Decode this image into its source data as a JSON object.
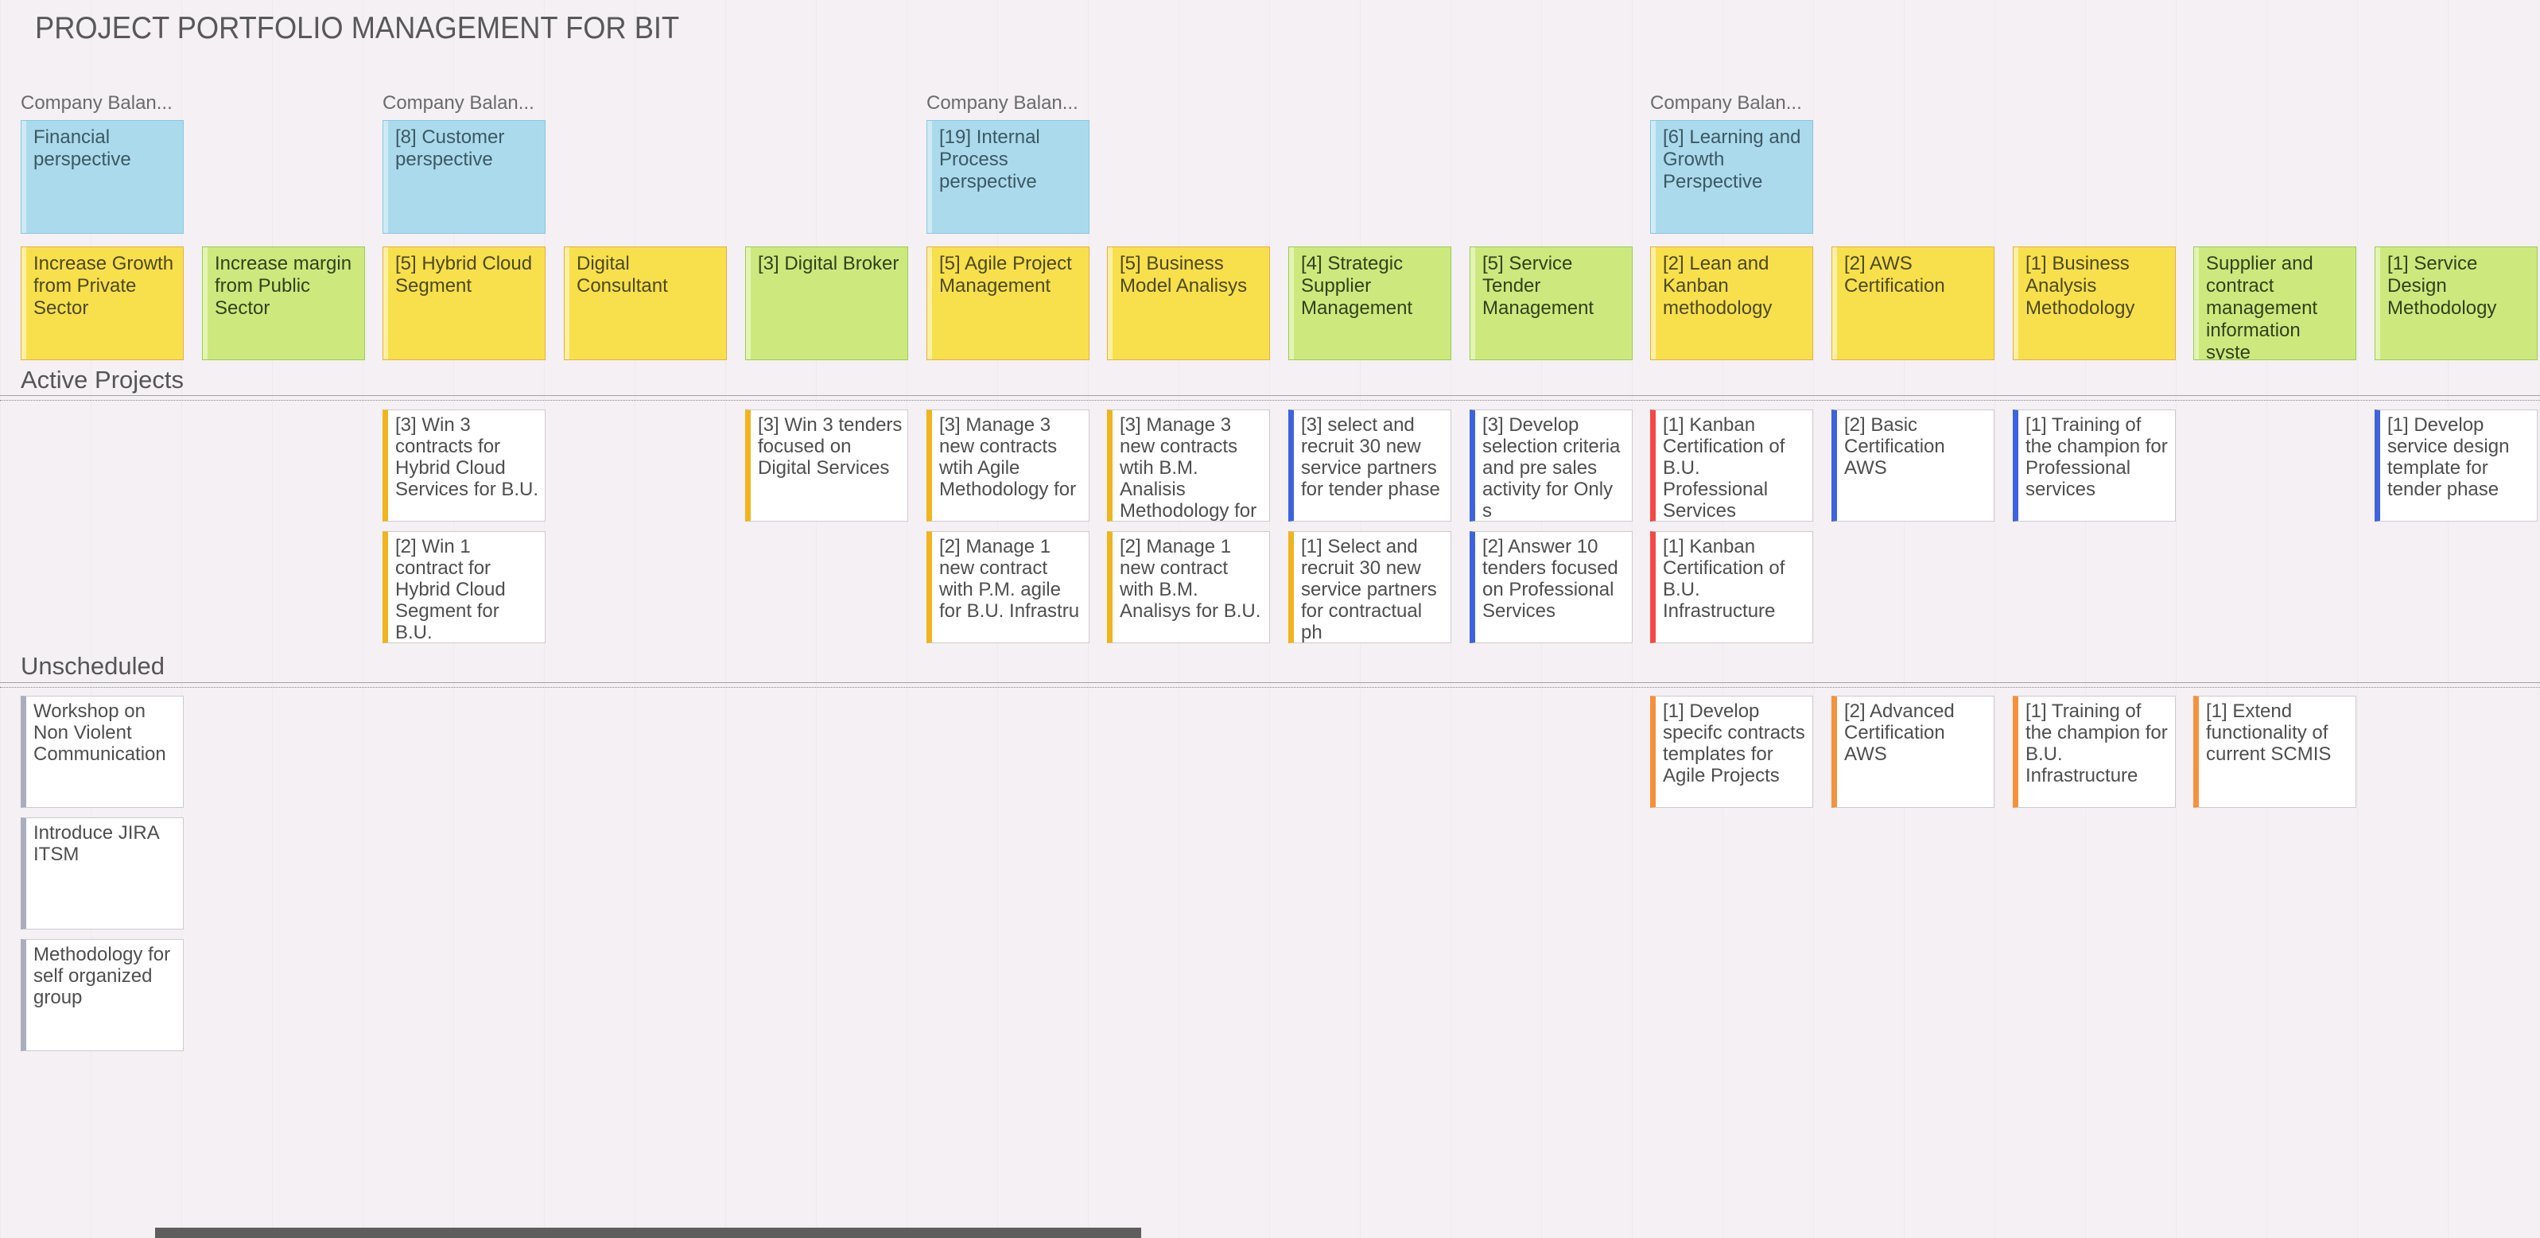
{
  "title": "PROJECT PORTFOLIO MANAGEMENT FOR BIT",
  "colors": {
    "background": "#f4f0f3",
    "title_text": "#58585a",
    "heading_text": "#555555",
    "group_header_text": "#6b6b6b",
    "project_card_text": "#4e4e4e",
    "cards": {
      "blue": {
        "bg": "#abdaec",
        "border": "#86c8e0",
        "stripe": "#cfeaf5",
        "text": "#3c5862"
      },
      "yellow": {
        "bg": "#f8e04c",
        "border": "#e6ae45",
        "stripe": "#fcf0a3",
        "text": "#4c4a1e"
      },
      "green": {
        "bg": "#cde97e",
        "border": "#9acb54",
        "stripe": "#e4f4b3",
        "text": "#31411b"
      }
    },
    "bars": {
      "yellow": "#f0b41e",
      "blue": "#3e63dd",
      "red": "#f24a46",
      "orange": "#f5913d",
      "gray": "#a9aebf"
    }
  },
  "group_headers": [
    {
      "label": "Company Balan...",
      "col": 1
    },
    {
      "label": "Company Balan...",
      "col": 3
    },
    {
      "label": "Company Balan...",
      "col": 6
    },
    {
      "label": "Company Balan...",
      "col": 10
    }
  ],
  "perspective_cards": [
    {
      "text": "Financial perspective",
      "col": 1
    },
    {
      "text": "[8] Customer perspective",
      "col": 3
    },
    {
      "text": "[19] Internal Process perspective",
      "col": 6
    },
    {
      "text": "[6] Learning and Growth Perspective",
      "col": 10
    }
  ],
  "goal_cards": [
    {
      "text": "Increase Growth from Private Sector",
      "col": 1,
      "color": "yellow"
    },
    {
      "text": "Increase margin from Public Sector",
      "col": 2,
      "color": "green"
    },
    {
      "text": "[5] Hybrid Cloud Segment",
      "col": 3,
      "color": "yellow"
    },
    {
      "text": "Digital Consultant",
      "col": 4,
      "color": "yellow"
    },
    {
      "text": "[3] Digital Broker",
      "col": 5,
      "color": "green"
    },
    {
      "text": "[5] Agile Project Management",
      "col": 6,
      "color": "yellow"
    },
    {
      "text": "[5] Business Model Analisys",
      "col": 7,
      "color": "yellow"
    },
    {
      "text": "[4] Strategic Supplier Management",
      "col": 8,
      "color": "green"
    },
    {
      "text": "[5] Service Tender Management",
      "col": 9,
      "color": "green"
    },
    {
      "text": "[2] Lean and Kanban methodology",
      "col": 10,
      "color": "yellow"
    },
    {
      "text": "[2] AWS Certification",
      "col": 11,
      "color": "yellow"
    },
    {
      "text": "[1] Business Analysis Methodology",
      "col": 12,
      "color": "yellow"
    },
    {
      "text": "Supplier and contract management information syste",
      "col": 13,
      "color": "green"
    },
    {
      "text": "[1] Service Design Methodology",
      "col": 14,
      "color": "green"
    }
  ],
  "sections": {
    "active": {
      "heading": "Active Projects",
      "cards": [
        {
          "text": "[3] Win 3 contracts for Hybrid Cloud Services for B.U.",
          "col": 3,
          "row": 0,
          "bar": "yellow"
        },
        {
          "text": "[3] Win 3 tenders focused on Digital Services",
          "col": 5,
          "row": 0,
          "bar": "yellow"
        },
        {
          "text": "[3] Manage 3 new contracts wtih  Agile Methodology for",
          "col": 6,
          "row": 0,
          "bar": "yellow"
        },
        {
          "text": "[3] Manage 3 new contracts wtih B.M. Analisis Methodology for",
          "col": 7,
          "row": 0,
          "bar": "yellow"
        },
        {
          "text": "[3] select and recruit 30 new service partners for tender phase",
          "col": 8,
          "row": 0,
          "bar": "blue"
        },
        {
          "text": "[3] Develop selection criteria and pre sales activity for Only s",
          "col": 9,
          "row": 0,
          "bar": "blue"
        },
        {
          "text": "[1] Kanban Certification of B.U. Professional Services",
          "col": 10,
          "row": 0,
          "bar": "red"
        },
        {
          "text": "[2] Basic Certification AWS",
          "col": 11,
          "row": 0,
          "bar": "blue"
        },
        {
          "text": "[1] Training of the champion for Professional services",
          "col": 12,
          "row": 0,
          "bar": "blue"
        },
        {
          "text": "[1] Develop service design template for tender phase",
          "col": 14,
          "row": 0,
          "bar": "blue"
        },
        {
          "text": "[2] Win 1 contract for Hybrid Cloud Segment for B.U.",
          "col": 3,
          "row": 1,
          "bar": "yellow"
        },
        {
          "text": "[2] Manage 1 new contract with P.M. agile for B.U. Infrastru",
          "col": 6,
          "row": 1,
          "bar": "yellow"
        },
        {
          "text": "[2] Manage 1 new contract with B.M. Analisys for B.U.",
          "col": 7,
          "row": 1,
          "bar": "yellow"
        },
        {
          "text": "[1] Select and recruit 30 new service partners for contractual ph",
          "col": 8,
          "row": 1,
          "bar": "yellow"
        },
        {
          "text": "[2] Answer 10 tenders focused on Professional Services",
          "col": 9,
          "row": 1,
          "bar": "blue"
        },
        {
          "text": "[1] Kanban Certification of B.U. Infrastructure",
          "col": 10,
          "row": 1,
          "bar": "red"
        }
      ]
    },
    "unscheduled": {
      "heading": "Unscheduled",
      "cards": [
        {
          "text": "Workshop on Non Violent Communication",
          "col": 1,
          "row": 0,
          "bar": "gray"
        },
        {
          "text": "[1] Develop specifc contracts templates for Agile Projects",
          "col": 10,
          "row": 0,
          "bar": "orange"
        },
        {
          "text": "[2] Advanced Certification AWS",
          "col": 11,
          "row": 0,
          "bar": "orange"
        },
        {
          "text": "[1] Training of the champion for B.U. Infrastructure",
          "col": 12,
          "row": 0,
          "bar": "orange"
        },
        {
          "text": "[1] Extend functionality of current SCMIS",
          "col": 13,
          "row": 0,
          "bar": "orange"
        },
        {
          "text": "Introduce JIRA ITSM",
          "col": 1,
          "row": 1,
          "bar": "gray"
        },
        {
          "text": "Methodology for self organized group",
          "col": 1,
          "row": 2,
          "bar": "gray"
        }
      ]
    }
  }
}
